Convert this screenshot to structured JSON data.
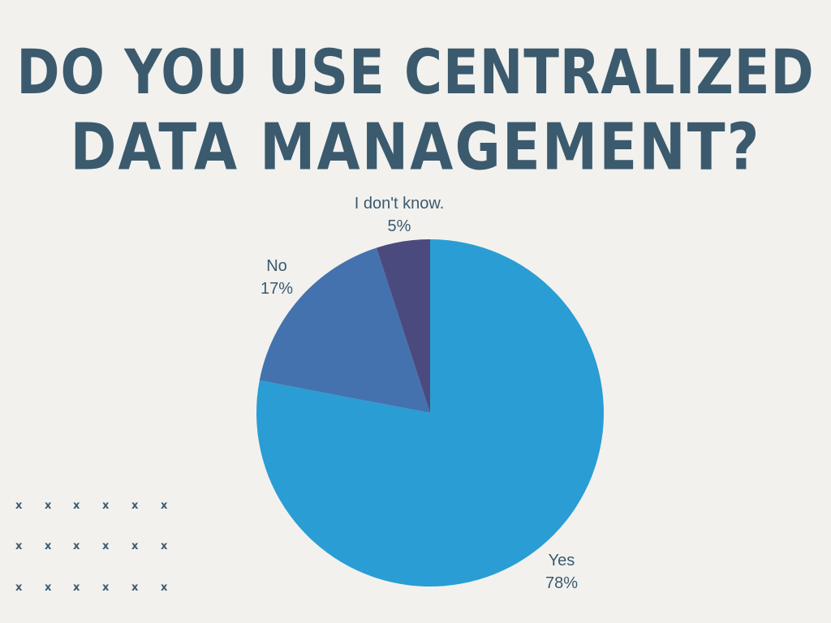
{
  "title": {
    "line1": "Do You Use Centralized",
    "line2": "Data Management?"
  },
  "colors": {
    "background": "#f2f1ee",
    "title": "#3b5a6e",
    "label": "#3b5a6e",
    "decor": "#3b5a6e"
  },
  "decoration": {
    "glyph": "x"
  },
  "chart_data": {
    "type": "pie",
    "title": "Do You Use Centralized Data Management?",
    "start_angle_deg": 0,
    "direction": "clockwise",
    "slices": [
      {
        "label": "Yes",
        "value": 78,
        "value_label": "78%",
        "color": "#2a9dd4"
      },
      {
        "label": "No",
        "value": 17,
        "value_label": "17%",
        "color": "#4472ae"
      },
      {
        "label": "I don't know.",
        "value": 5,
        "value_label": "5%",
        "color": "#4b4a7e"
      }
    ]
  }
}
